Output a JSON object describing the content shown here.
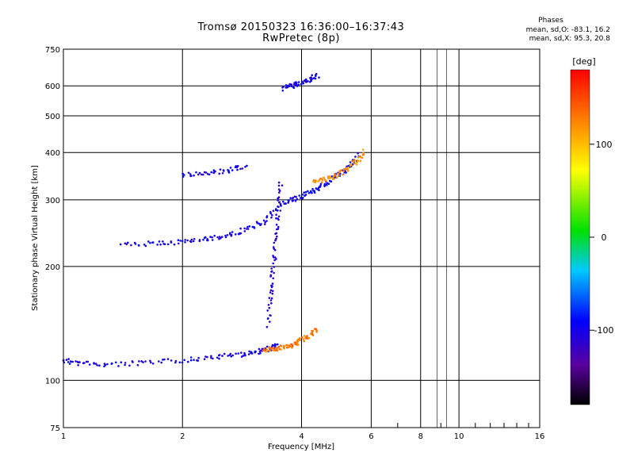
{
  "header": {
    "title_line1": "Tromsø 20150323 16:36:00–16:37:43",
    "title_line2": "RwPretec (8p)",
    "stats_heading": "Phases",
    "stats_o": "mean, sd,O:  -83.1, 16.2",
    "stats_x": "mean, sd,X:  95.3, 20.8"
  },
  "chart_data": {
    "type": "scatter",
    "xlabel": "Frequency [MHz]",
    "ylabel": "Stationary phase Virtual Height [km]",
    "xscale": "log",
    "yscale": "log",
    "xlim": [
      1,
      16
    ],
    "ylim": [
      75,
      750
    ],
    "xticks": [
      1,
      2,
      4,
      6,
      8,
      10,
      16
    ],
    "xtick_labels": [
      "1",
      "2",
      "4",
      "6",
      "8",
      "10",
      "16"
    ],
    "yticks": [
      75,
      100,
      200,
      300,
      400,
      500,
      600,
      750
    ],
    "ytick_labels": [
      "75",
      "100",
      "200",
      "300",
      "400",
      "500",
      "600",
      "750"
    ],
    "grid": true,
    "colorbar": {
      "label": "[deg]",
      "range": [
        -180,
        180
      ],
      "ticks": [
        100,
        0,
        -100
      ],
      "tick_labels": [
        "100",
        "0",
        "-100"
      ]
    },
    "traces": [
      {
        "x": [
          1.0,
          1.1,
          1.3,
          1.6,
          2.0,
          2.4,
          2.8,
          3.1,
          3.3,
          3.5
        ],
        "y": [
          113,
          111,
          110,
          111,
          113,
          115,
          117,
          119,
          121,
          124
        ],
        "phase": -100
      },
      {
        "x": [
          3.2,
          3.4,
          3.6,
          3.8,
          4.0,
          4.2,
          4.4
        ],
        "y": [
          120,
          121,
          122,
          124,
          128,
          132,
          136
        ],
        "phase": 130
      },
      {
        "x": [
          1.4,
          1.7,
          2.0,
          2.3,
          2.6,
          2.9,
          3.2,
          3.5
        ],
        "y": [
          228,
          230,
          232,
          236,
          242,
          250,
          262,
          285
        ],
        "phase": -100
      },
      {
        "x": [
          3.5,
          3.8,
          4.1,
          4.4,
          4.7,
          5.0,
          5.3,
          5.6
        ],
        "y": [
          292,
          300,
          310,
          322,
          335,
          350,
          368,
          395
        ],
        "phase": -95
      },
      {
        "x": [
          4.3,
          4.6,
          4.9,
          5.2,
          5.5,
          5.8
        ],
        "y": [
          335,
          340,
          348,
          360,
          378,
          405
        ],
        "phase": 120
      },
      {
        "x": [
          2.0,
          2.3,
          2.6,
          2.9
        ],
        "y": [
          348,
          352,
          358,
          370
        ],
        "phase": -100
      },
      {
        "x": [
          3.3,
          3.35,
          3.4,
          3.45,
          3.5,
          3.55
        ],
        "y": [
          140,
          170,
          200,
          240,
          280,
          340
        ],
        "phase": -110
      },
      {
        "x": [
          3.6,
          3.8,
          4.0,
          4.2,
          4.4
        ],
        "y": [
          590,
          600,
          612,
          625,
          640
        ],
        "phase": -100
      }
    ]
  }
}
